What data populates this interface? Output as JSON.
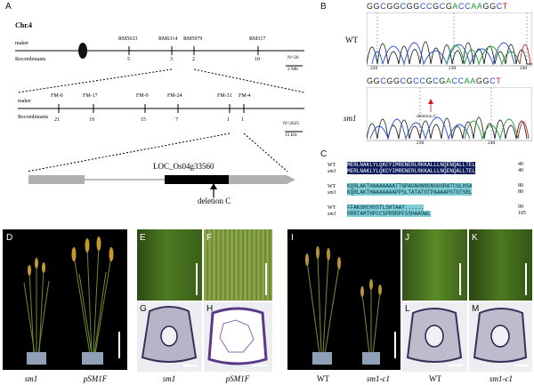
{
  "panels": {
    "A": "A",
    "B": "B",
    "C": "C",
    "D": "D",
    "E": "E",
    "F": "F",
    "G": "G",
    "H": "H",
    "I": "I",
    "J": "J",
    "K": "K",
    "L": "L",
    "M": "M"
  },
  "map": {
    "chr": "Chr.4",
    "maker_label": "maker",
    "recomb_label": "Recombinants",
    "coarse_markers": [
      "RM5633",
      "RM6314",
      "RM5979",
      "RM317"
    ],
    "coarse_recomb": [
      "5",
      "3",
      "2",
      "10"
    ],
    "coarse_n": "N=26",
    "coarse_scale": "2 Mb",
    "fine_markers": [
      "FM-6",
      "FM-17",
      "FM-9",
      "FM-24",
      "FM-31",
      "FM-4"
    ],
    "fine_recomb": [
      "21",
      "19",
      "15",
      "7",
      "1",
      "1"
    ],
    "fine_n": "N=2625",
    "fine_scale": "15 Kb",
    "gene": "LOC_Os04g33560",
    "deletion": "deletion C"
  },
  "chromatogram": {
    "wt_label": "WT",
    "sm1_label": "sm1",
    "wt_seq": "GGCGGCGGCCGCGACCAAGGCT",
    "wt_ticks": [
      "220",
      "230",
      "240"
    ],
    "sm1_seq": "GGCGGCGCCGCGACCAAGGCT",
    "sm1_ticks": [
      "230",
      "240"
    ],
    "deletion": "deletion C",
    "colors": {
      "G": "#222222",
      "C": "#1f4fd1",
      "A": "#1a9a2a",
      "T": "#d01818"
    }
  },
  "alignment": [
    {
      "wt": "WT",
      "wt_seq": "MERLNAKLYLQKCYIMRENERLRKKALLLNQENQALLTEL",
      "wt_num": "40",
      "m": "sm1",
      "m_seq": "MERLNAKLYLQKCYIMRENERLRKKALLLNQENQALLTEL",
      "m_num": "40"
    },
    {
      "wt": "WT",
      "wt_seq": "KQRLAKTHAAAAAAATTNPAGNHNNSNGGGRATCGLHSA",
      "wt_num": "80",
      "m": "sm1",
      "m_seq": "KQRLAKTHAAAAAAAPPSLTATATGTPAAAAPSTGTSRL",
      "m_num": "80"
    },
    {
      "wt": "WT",
      "wt_seq": "FFAKGHCHVSTLSHTAAY......",
      "wt_num": "99",
      "m": "sm1",
      "m_seq": "RRRTAMTHPCCSPRRRPFSSHAASWL",
      "m_num": "105"
    }
  ],
  "captions": {
    "D_left": "sm1",
    "D_right": "pSM1F",
    "G": "sm1",
    "H": "pSM1F",
    "I_left": "WT",
    "I_right": "sm1-c1",
    "L": "WT",
    "M": "sm1-c1"
  }
}
